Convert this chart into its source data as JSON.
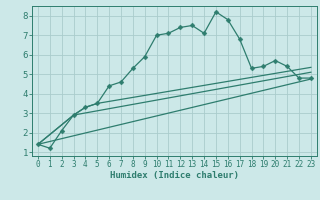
{
  "xlabel": "Humidex (Indice chaleur)",
  "background_color": "#cce8e8",
  "grid_color": "#aacccc",
  "line_color": "#2e7d6e",
  "xlim": [
    -0.5,
    23.5
  ],
  "ylim": [
    0.8,
    8.5
  ],
  "yticks": [
    1,
    2,
    3,
    4,
    5,
    6,
    7,
    8
  ],
  "xticks": [
    0,
    1,
    2,
    3,
    4,
    5,
    6,
    7,
    8,
    9,
    10,
    11,
    12,
    13,
    14,
    15,
    16,
    17,
    18,
    19,
    20,
    21,
    22,
    23
  ],
  "main_x": [
    0,
    1,
    2,
    3,
    4,
    5,
    6,
    7,
    8,
    9,
    10,
    11,
    12,
    13,
    14,
    15,
    16,
    17,
    18,
    19,
    20,
    21,
    22,
    23
  ],
  "main_y": [
    1.4,
    1.2,
    2.1,
    2.9,
    3.3,
    3.5,
    4.4,
    4.6,
    5.3,
    5.9,
    7.0,
    7.1,
    7.4,
    7.5,
    7.1,
    8.2,
    7.8,
    6.8,
    5.3,
    5.4,
    5.7,
    5.4,
    4.8,
    4.8
  ],
  "line2_x": [
    0,
    3,
    4,
    5,
    23
  ],
  "line2_y": [
    1.4,
    2.9,
    3.3,
    3.5,
    5.35
  ],
  "line3_x": [
    0,
    3,
    23
  ],
  "line3_y": [
    1.4,
    2.9,
    5.1
  ],
  "line4_x": [
    0,
    23
  ],
  "line4_y": [
    1.4,
    4.75
  ]
}
